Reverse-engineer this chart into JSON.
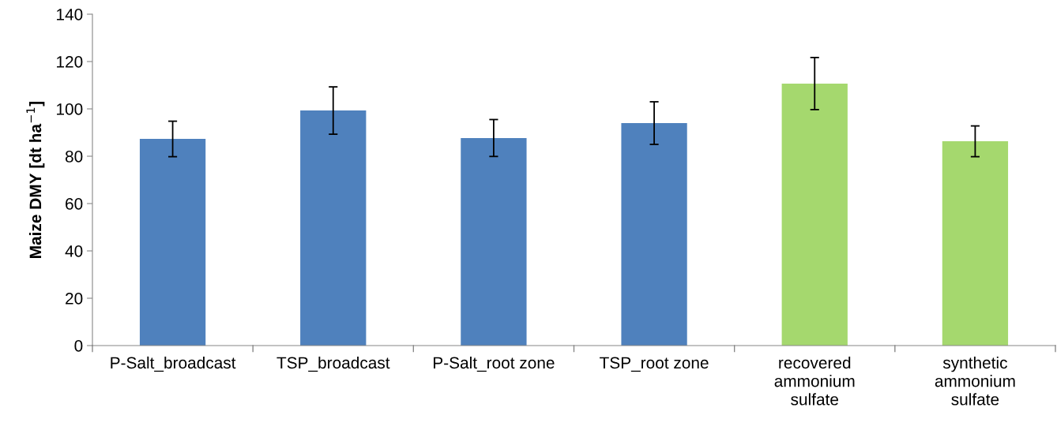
{
  "chart_data": {
    "type": "bar",
    "ylabel": "Maize DMY [dt ha$^{−1}$]",
    "categories": [
      "P-Salt_broadcast",
      "TSP_broadcast",
      "P-Salt_root zone",
      "TSP_root zone",
      "recovered\nammonium\nsulfate",
      "synthetic\nammonium\nsulfate"
    ],
    "values": [
      87.3,
      99.3,
      87.7,
      94,
      110.7,
      86.3
    ],
    "errors": [
      7.5,
      10,
      7.8,
      9,
      11,
      6.5
    ],
    "colors": [
      "#4f81bd",
      "#4f81bd",
      "#4f81bd",
      "#4f81bd",
      "#a5d86e",
      "#a5d86e"
    ],
    "ylim": [
      0,
      140
    ],
    "yticks": [
      0,
      20,
      40,
      60,
      80,
      100,
      120,
      140
    ],
    "grid": false,
    "legend": false
  }
}
